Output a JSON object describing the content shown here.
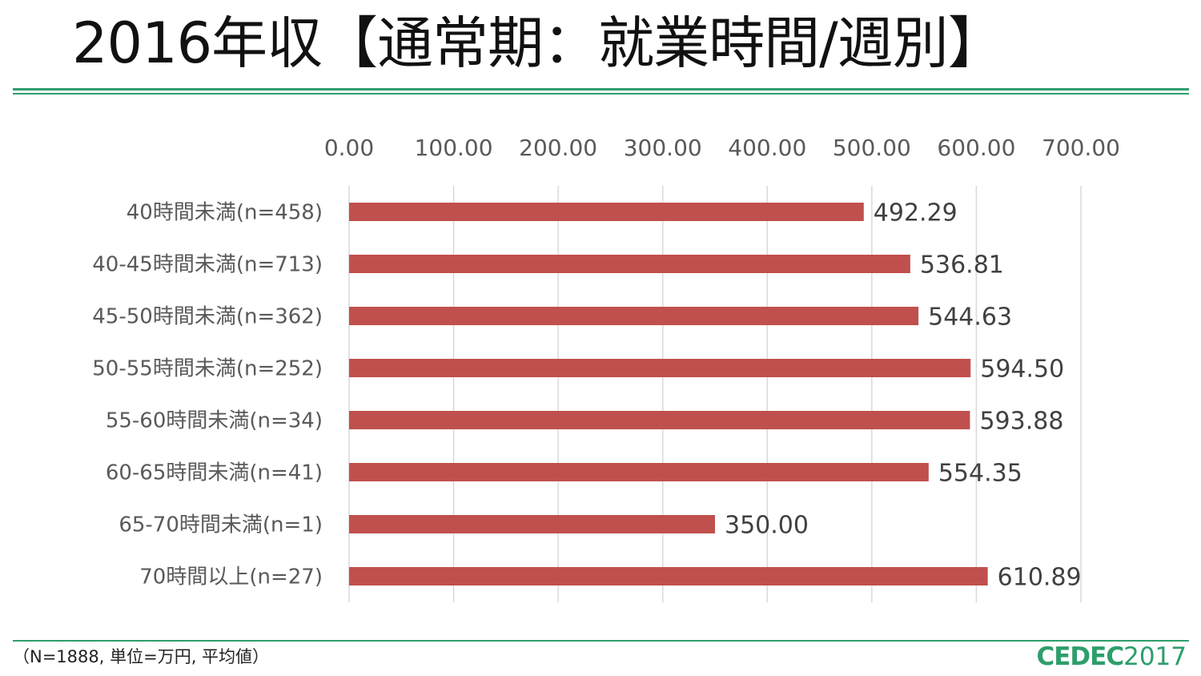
{
  "title": "2016年収【通常期：就業時間/週別】",
  "footnote": "（N=1888, 単位=万円, 平均値）",
  "logo": {
    "brand": "CEDEC",
    "year": "2017"
  },
  "colors": {
    "bar": "#c0504d",
    "gridline": "#d9d9d9",
    "rule": "#2e9e6b",
    "logo": "#2e9e6b"
  },
  "chart_data": {
    "type": "bar",
    "orientation": "horizontal",
    "categories": [
      "40時間未満(n=458)",
      "40-45時間未満(n=713)",
      "45-50時間未満(n=362)",
      "50-55時間未満(n=252)",
      "55-60時間未満(n=34)",
      "60-65時間未満(n=41)",
      "65-70時間未満(n=1)",
      "70時間以上(n=27)"
    ],
    "values": [
      492.29,
      536.81,
      544.63,
      594.5,
      593.88,
      554.35,
      350.0,
      610.89
    ],
    "data_labels": [
      "492.29",
      "536.81",
      "544.63",
      "594.50",
      "593.88",
      "554.35",
      "350.00",
      "610.89"
    ],
    "xlim": [
      0,
      700
    ],
    "ticks": [
      0,
      100,
      200,
      300,
      400,
      500,
      600,
      700
    ],
    "tick_labels": [
      "0.00",
      "100.00",
      "200.00",
      "300.00",
      "400.00",
      "500.00",
      "600.00",
      "700.00"
    ],
    "axis_position": "top",
    "grid": true,
    "legend": "none"
  }
}
